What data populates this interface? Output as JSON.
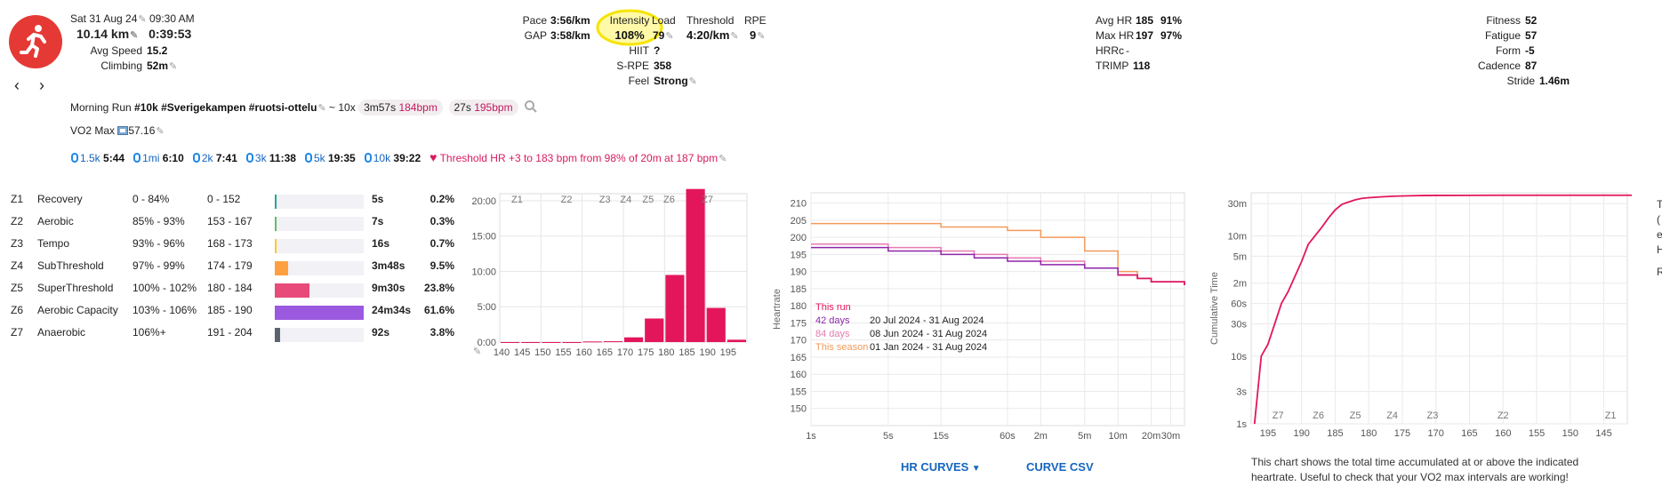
{
  "header": {
    "date": "Sat 31 Aug 24",
    "time": "09:30 AM",
    "distance": "10.14 km",
    "duration": "0:39:53",
    "avg_speed_label": "Avg Speed",
    "avg_speed": "15.2",
    "climbing_label": "Climbing",
    "climbing": "52m"
  },
  "metrics": {
    "pace_label": "Pace",
    "pace": "3:56/km",
    "gap_label": "GAP",
    "gap": "3:58/km",
    "intensity_label": "Intensity",
    "intensity": "108%",
    "load_label": "Load",
    "load": "79",
    "hiit_label": "HIIT",
    "hiit": "?",
    "srpe_label": "S-RPE",
    "srpe": "358",
    "feel_label": "Feel",
    "feel": "Strong",
    "threshold_label": "Threshold",
    "threshold": "4:20/km",
    "rpe_label": "RPE",
    "rpe": "9",
    "avg_hr_label": "Avg HR",
    "avg_hr": "185",
    "avg_hr_pct": "91%",
    "max_hr_label": "Max HR",
    "max_hr": "197",
    "max_hr_pct": "97%",
    "hrrc_label": "HRRc",
    "hrrc": "-",
    "trimp_label": "TRIMP",
    "trimp": "118",
    "fitness_label": "Fitness",
    "fitness": "52",
    "fatigue_label": "Fatigue",
    "fatigue": "57",
    "form_label": "Form",
    "form": "-5",
    "cadence_label": "Cadence",
    "cadence": "87",
    "stride_label": "Stride",
    "stride": "1.46m"
  },
  "description": {
    "title": "Morning Run",
    "tags": "#10k #Sverigekampen #ruotsi-ottelu",
    "intervals_prefix": "~ 10x",
    "interval1_time": "3m57s",
    "interval1_hr": "184bpm",
    "interval2_time": "27s",
    "interval2_hr": "195bpm"
  },
  "vo2": {
    "label": "VO2 Max",
    "value": "57.16"
  },
  "bests": [
    {
      "dist": "1.5k",
      "time": "5:44"
    },
    {
      "dist": "1mi",
      "time": "6:10"
    },
    {
      "dist": "2k",
      "time": "7:41"
    },
    {
      "dist": "3k",
      "time": "11:38"
    },
    {
      "dist": "5k",
      "time": "19:35"
    },
    {
      "dist": "10k",
      "time": "39:22"
    }
  ],
  "threshold_note": "Threshold HR +3 to 183 bpm from 98% of 20m at 187 bpm",
  "zones": [
    {
      "code": "Z1",
      "name": "Recovery",
      "pct": "0 - 84%",
      "bpm": "0 - 152",
      "time": "5s",
      "share": "0.2%",
      "frac": 0.002,
      "color": "#26a69a"
    },
    {
      "code": "Z2",
      "name": "Aerobic",
      "pct": "85% - 93%",
      "bpm": "153 - 167",
      "time": "7s",
      "share": "0.3%",
      "frac": 0.003,
      "color": "#66bb6a"
    },
    {
      "code": "Z3",
      "name": "Tempo",
      "pct": "93% - 96%",
      "bpm": "168 - 173",
      "time": "16s",
      "share": "0.7%",
      "frac": 0.007,
      "color": "#ffca28"
    },
    {
      "code": "Z4",
      "name": "SubThreshold",
      "pct": "97% - 99%",
      "bpm": "174 - 179",
      "time": "3m48s",
      "share": "9.5%",
      "frac": 0.095,
      "color": "#ffa040"
    },
    {
      "code": "Z5",
      "name": "SuperThreshold",
      "pct": "100% - 102%",
      "bpm": "180 - 184",
      "time": "9m30s",
      "share": "23.8%",
      "frac": 0.238,
      "color": "#e84a7a"
    },
    {
      "code": "Z6",
      "name": "Aerobic Capacity",
      "pct": "103% - 106%",
      "bpm": "185 - 190",
      "time": "24m34s",
      "share": "61.6%",
      "frac": 0.616,
      "color": "#9b59e0"
    },
    {
      "code": "Z7",
      "name": "Anaerobic",
      "pct": "106%+",
      "bpm": "191 - 204",
      "time": "92s",
      "share": "3.8%",
      "frac": 0.038,
      "color": "#5c6470"
    }
  ],
  "chart_data": [
    {
      "type": "bar",
      "x": [
        140,
        145,
        150,
        155,
        160,
        165,
        170,
        175,
        180,
        185,
        190,
        195
      ],
      "values_seconds": [
        0,
        0,
        0,
        0,
        5,
        7,
        40,
        200,
        570,
        1300,
        290,
        20
      ],
      "ylim": [
        0,
        1260
      ],
      "yticks": [
        "0:00",
        "5:00",
        "10:00",
        "15:00",
        "20:00"
      ],
      "zone_labels": [
        "Z1",
        "Z2",
        "Z3",
        "Z4",
        "Z5",
        "Z6",
        "Z7"
      ],
      "color": "#e3165b"
    },
    {
      "type": "line",
      "ylabel": "Heartrate",
      "ylim": [
        145,
        213
      ],
      "yticks": [
        150,
        155,
        160,
        165,
        170,
        175,
        180,
        185,
        190,
        195,
        200,
        205,
        210
      ],
      "xticks": [
        "1s",
        "5s",
        "15s",
        "60s",
        "2m",
        "5m",
        "10m",
        "20m",
        "30m"
      ],
      "x_seconds": [
        1,
        5,
        15,
        30,
        60,
        120,
        300,
        600,
        900,
        1200,
        1800,
        2400
      ],
      "series": [
        {
          "name": "This run",
          "color": "#e3165b",
          "values": [
            null,
            null,
            null,
            null,
            null,
            null,
            null,
            189,
            188,
            187,
            187,
            186
          ]
        },
        {
          "name": "42 days",
          "range": "20 Jul 2024  - 31 Aug 2024",
          "color": "#8e24aa",
          "values": [
            197,
            196,
            195,
            194,
            193,
            192,
            191,
            189,
            188,
            187,
            187,
            186
          ]
        },
        {
          "name": "84 days",
          "range": "08 Jun 2024  - 31 Aug 2024",
          "color": "#e67ab0",
          "values": [
            198,
            197,
            196,
            195,
            194,
            193,
            191,
            189,
            188,
            187,
            187,
            186
          ]
        },
        {
          "name": "This season",
          "range": "01 Jan 2024  - 31 Aug 2024",
          "color": "#f39a5a",
          "values": [
            204,
            204,
            203,
            203,
            202,
            200,
            196,
            190,
            188,
            187,
            187,
            186
          ]
        }
      ]
    },
    {
      "type": "line",
      "ylabel": "Cumulative Time",
      "yscale": "log",
      "yticks": [
        "1s",
        "3s",
        "10s",
        "30s",
        "60s",
        "2m",
        "5m",
        "10m",
        "30m"
      ],
      "xticks": [
        195,
        190,
        185,
        180,
        175,
        170,
        165,
        160,
        155,
        150,
        145
      ],
      "zone_labels": [
        "Z7",
        "Z6",
        "Z5",
        "Z4",
        "Z3",
        "Z2",
        "Z1"
      ],
      "x_hr": [
        197,
        196,
        195,
        194,
        193,
        192,
        191,
        190,
        189,
        188,
        187,
        186,
        185,
        184,
        183,
        182,
        181,
        180,
        178,
        176,
        174,
        172,
        170,
        160,
        150,
        140
      ],
      "y_seconds": [
        1,
        10,
        15,
        30,
        60,
        90,
        150,
        250,
        450,
        600,
        800,
        1100,
        1450,
        1750,
        1900,
        2050,
        2150,
        2200,
        2270,
        2320,
        2350,
        2370,
        2380,
        2390,
        2393,
        2393
      ],
      "color": "#e3165b"
    }
  ],
  "hr_curves_button": "HR CURVES",
  "curve_csv_button": "CURVE CSV",
  "cumulative_note_line1": "This chart shows the total time accumulated at or above the indicated",
  "cumulative_note_line2": "heartrate. Useful to check that your VO2 max intervals are working!",
  "right_edge_fragments": [
    "T",
    "(",
    "e",
    "H",
    "R"
  ]
}
